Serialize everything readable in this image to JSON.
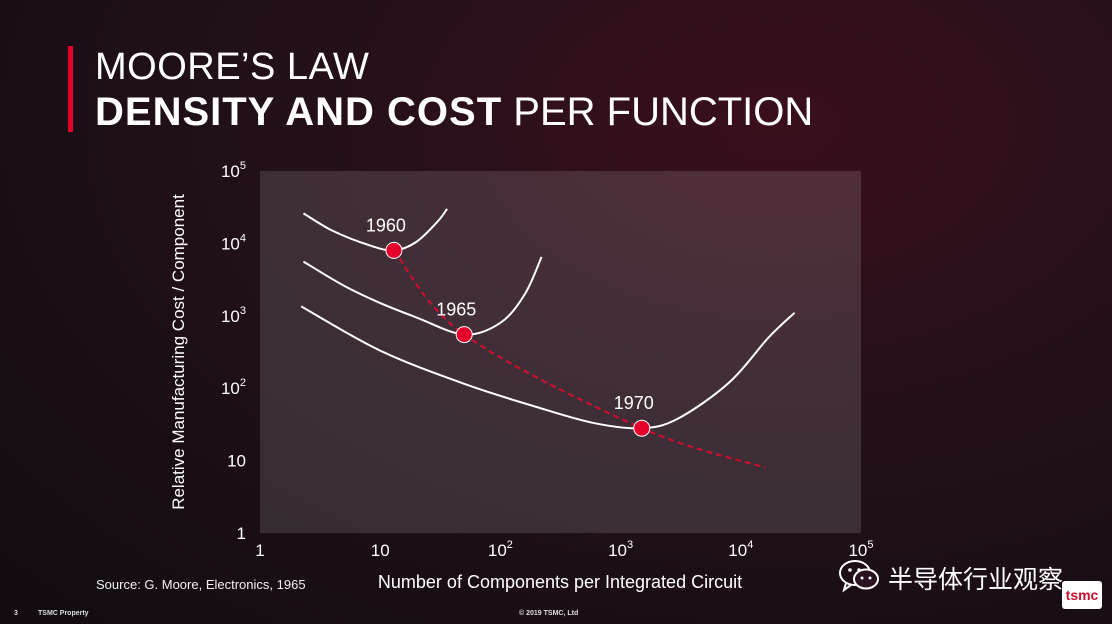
{
  "title": {
    "line1": "MOORE’S LAW",
    "bold": "DENSITY AND COST",
    "rest": "PER FUNCTION"
  },
  "chart_data": {
    "type": "line",
    "xlabel": "Number of Components per Integrated Circuit",
    "ylabel": "Relative Manufacturing Cost / Component",
    "x_scale": "log",
    "y_scale": "log",
    "xlim": [
      1,
      100000
    ],
    "ylim": [
      1,
      100000
    ],
    "x_ticks": [
      {
        "v": 1,
        "b": "1",
        "e": ""
      },
      {
        "v": 10,
        "b": "10",
        "e": ""
      },
      {
        "v": 100,
        "b": "10",
        "e": "2"
      },
      {
        "v": 1000,
        "b": "10",
        "e": "3"
      },
      {
        "v": 10000,
        "b": "10",
        "e": "4"
      },
      {
        "v": 100000,
        "b": "10",
        "e": "5"
      }
    ],
    "y_ticks": [
      {
        "v": 1,
        "b": "1",
        "e": ""
      },
      {
        "v": 10,
        "b": "10",
        "e": ""
      },
      {
        "v": 100,
        "b": "10",
        "e": "2"
      },
      {
        "v": 1000,
        "b": "10",
        "e": "3"
      },
      {
        "v": 10000,
        "b": "10",
        "e": "4"
      },
      {
        "v": 100000,
        "b": "10",
        "e": "5"
      }
    ],
    "series": [
      {
        "name": "1960",
        "points": [
          [
            2.3,
            26000
          ],
          [
            4,
            15000
          ],
          [
            8,
            9500
          ],
          [
            13,
            8000
          ],
          [
            20,
            10500
          ],
          [
            30,
            20000
          ],
          [
            36,
            30000
          ]
        ]
      },
      {
        "name": "1965",
        "points": [
          [
            2.3,
            5600
          ],
          [
            5,
            2600
          ],
          [
            10,
            1500
          ],
          [
            20,
            950
          ],
          [
            50,
            550
          ],
          [
            100,
            800
          ],
          [
            160,
            2000
          ],
          [
            220,
            6500
          ]
        ]
      },
      {
        "name": "1970",
        "points": [
          [
            2.2,
            1350
          ],
          [
            10,
            330
          ],
          [
            50,
            115
          ],
          [
            200,
            55
          ],
          [
            600,
            33
          ],
          [
            1500,
            28
          ],
          [
            3000,
            38
          ],
          [
            8000,
            120
          ],
          [
            17000,
            500
          ],
          [
            28000,
            1100
          ]
        ]
      }
    ],
    "minimum_cost_points": [
      {
        "label": "1960",
        "x": 13,
        "y": 8000
      },
      {
        "label": "1965",
        "x": 50,
        "y": 550
      },
      {
        "label": "1970",
        "x": 1500,
        "y": 28
      }
    ],
    "trend_end": {
      "x": 16000,
      "y": 8
    },
    "colors": {
      "curves": "#ffffff",
      "minima": "#e4002b",
      "trend": "#c8102e",
      "plot_bg": "#ffffff"
    }
  },
  "source": "Source: G. Moore, Electronics, 1965",
  "footer": {
    "page": "3",
    "property": "TSMC Property",
    "copyright": "© 2019 TSMC, Ltd"
  },
  "watermark": {
    "text": "半导体行业观察",
    "icon": "wechat-icon"
  },
  "logo": {
    "text": "tsmc",
    "icon": "tsmc-logo"
  }
}
